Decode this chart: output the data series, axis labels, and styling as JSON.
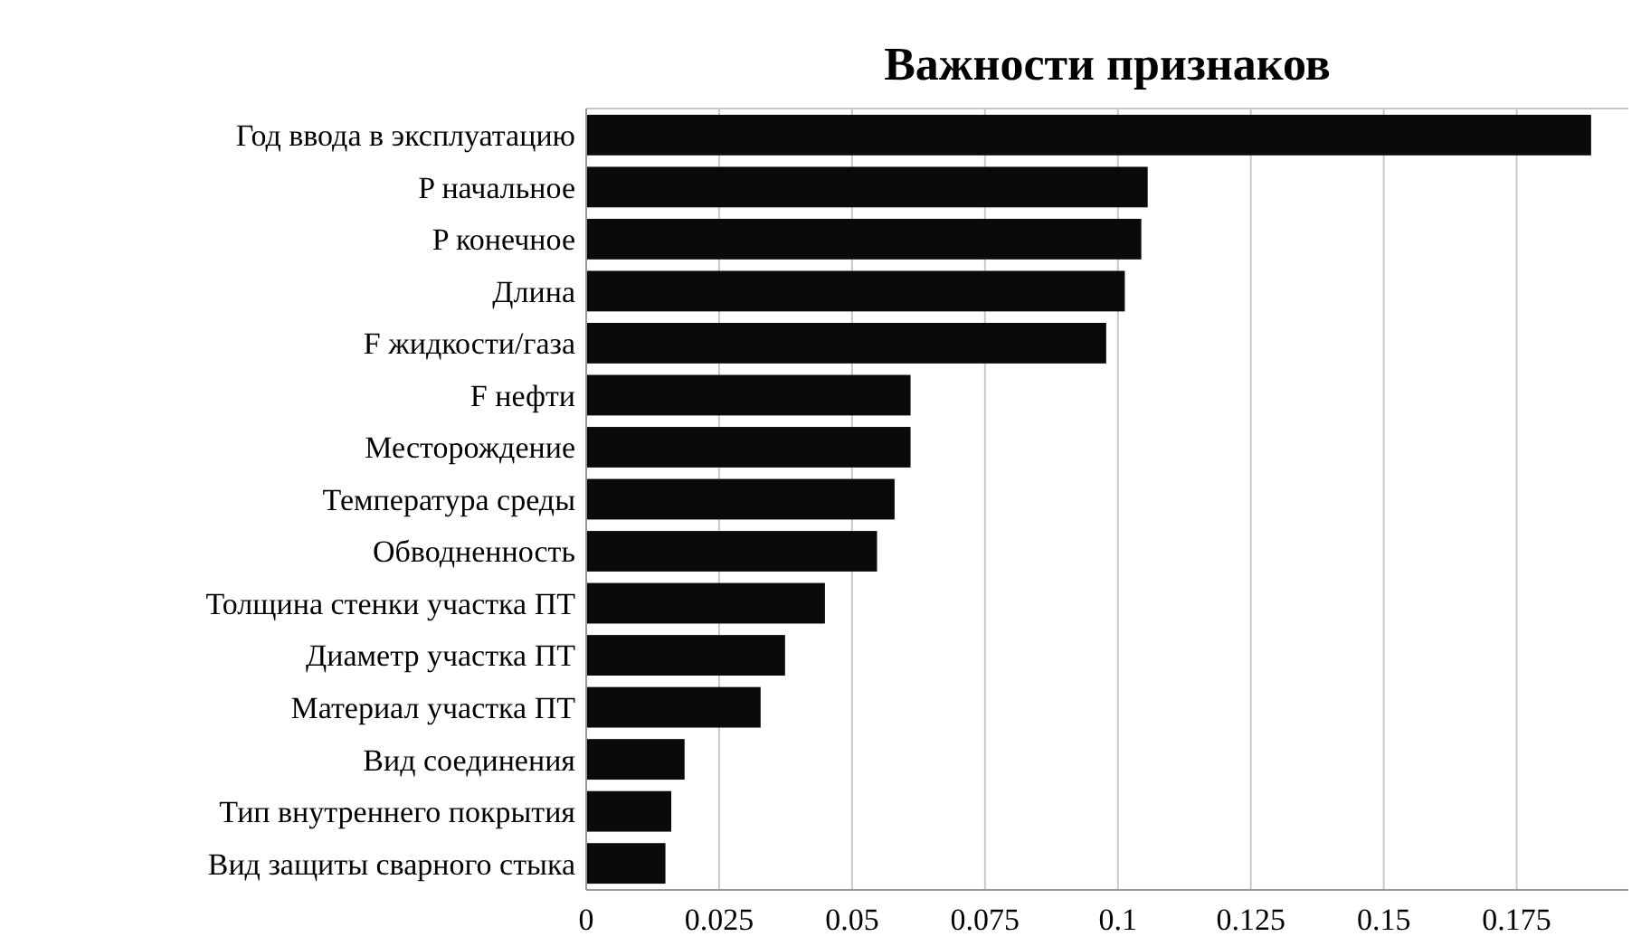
{
  "chart_data": {
    "type": "bar",
    "orientation": "horizontal",
    "title": "Важности признаков",
    "categories": [
      "Год ввода в эксплуатацию",
      "P начальное",
      "P конечное",
      "Длина",
      "F жидкости/газа",
      "F нефти",
      "Месторождение",
      "Температура среды",
      "Обводненность",
      "Толщина стенки участка ПТ",
      "Диаметр участка ПТ",
      "Материал участка ПТ",
      "Вид соединения",
      "Тип внутреннего покрытия",
      "Вид защиты сварного стыка"
    ],
    "values": [
      0.189,
      0.1056,
      0.1044,
      0.1013,
      0.0978,
      0.061,
      0.061,
      0.058,
      0.0547,
      0.0449,
      0.0374,
      0.0328,
      0.0185,
      0.016,
      0.0149
    ],
    "color": "#0a0a0a",
    "xlim": [
      0,
      0.196
    ],
    "xticks": [
      0,
      0.025,
      0.05,
      0.075,
      0.1,
      0.125,
      0.15,
      0.175
    ],
    "grid": "x"
  }
}
